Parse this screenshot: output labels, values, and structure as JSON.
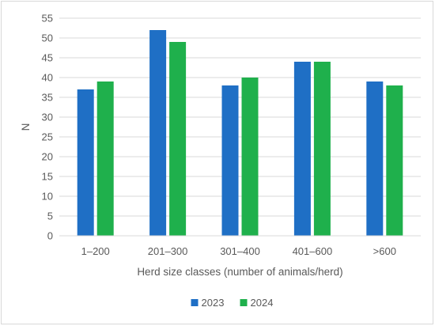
{
  "chart_data": {
    "type": "bar",
    "title": "",
    "xlabel": "Herd size classes (number of animals/herd)",
    "ylabel": "N",
    "categories": [
      "1–200",
      "201–300",
      "301–400",
      "401–600",
      ">600"
    ],
    "series": [
      {
        "name": "2023",
        "color": "#1f6fc5",
        "values": [
          37,
          52,
          38,
          44,
          39
        ]
      },
      {
        "name": "2024",
        "color": "#1fb04c",
        "values": [
          39,
          49,
          40,
          44,
          38
        ]
      }
    ],
    "ylim": [
      0,
      55
    ],
    "yticks": [
      0,
      5,
      10,
      15,
      20,
      25,
      30,
      35,
      40,
      45,
      50,
      55
    ],
    "grid": true,
    "legend": "bottom-center"
  }
}
